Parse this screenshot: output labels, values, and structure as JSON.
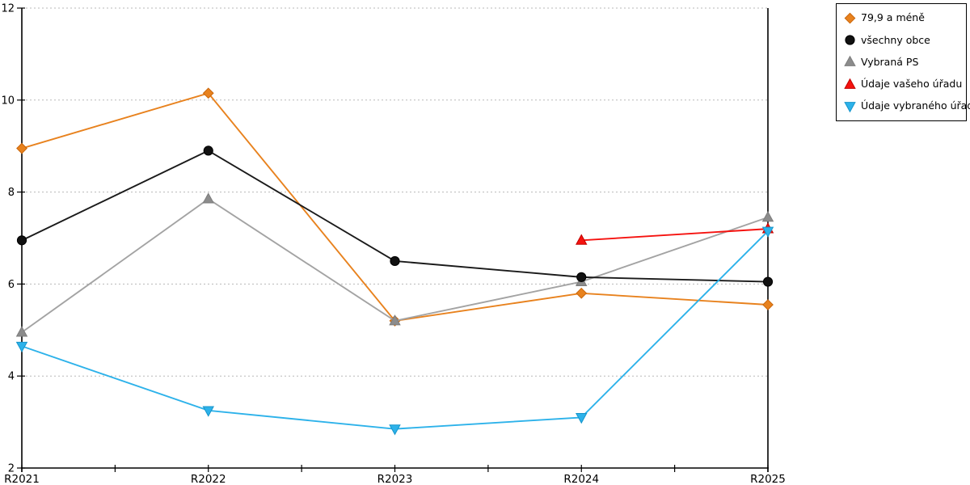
{
  "window": {
    "background": "#FFFFFF"
  },
  "chart_data": {
    "type": "line",
    "title": "",
    "xlabel": "",
    "ylabel": "",
    "categories": [
      "R2021",
      "R2022",
      "R2023",
      "R2024",
      "R2025"
    ],
    "series": [
      {
        "name": "79,9 a méně",
        "marker": "diamond",
        "color": "#E8821E",
        "marker_color": "#E8821E",
        "marker_edge": "#C9660B",
        "values": [
          8.95,
          10.15,
          5.2,
          5.8,
          5.55
        ]
      },
      {
        "name": "všechny obce",
        "marker": "circle",
        "color": "#1A1A1A",
        "marker_color": "#111111",
        "marker_edge": "#000000",
        "values": [
          6.95,
          8.9,
          6.5,
          6.15,
          6.05
        ]
      },
      {
        "name": "Vybraná PS",
        "marker": "triangle-up",
        "color": "#A3A3A3",
        "marker_color": "#8C8C8C",
        "marker_edge": "#7D7D7D",
        "values": [
          4.95,
          7.85,
          5.2,
          6.05,
          7.45
        ]
      },
      {
        "name": "Údaje vašeho úřadu",
        "marker": "triangle-up",
        "color": "#F5120F",
        "marker_color": "#F5120F",
        "marker_edge": "#C00300",
        "values": [
          null,
          null,
          null,
          6.95,
          7.2
        ]
      },
      {
        "name": "Údaje vybraného úřadu",
        "marker": "triangle-down",
        "color": "#2DB2EA",
        "marker_color": "#2DB2EA",
        "marker_edge": "#1695CB",
        "values": [
          4.65,
          3.25,
          2.85,
          3.1,
          7.15
        ]
      }
    ],
    "ylim": [
      2,
      12
    ],
    "yticks": [
      2,
      4,
      6,
      8,
      10,
      12
    ],
    "grid": "horizontal-dotted",
    "grid_color": "#B8B8B8",
    "axis_color": "#000000",
    "legend_position": "top-right",
    "draw_order": [
      0,
      2,
      1,
      3,
      4
    ]
  }
}
